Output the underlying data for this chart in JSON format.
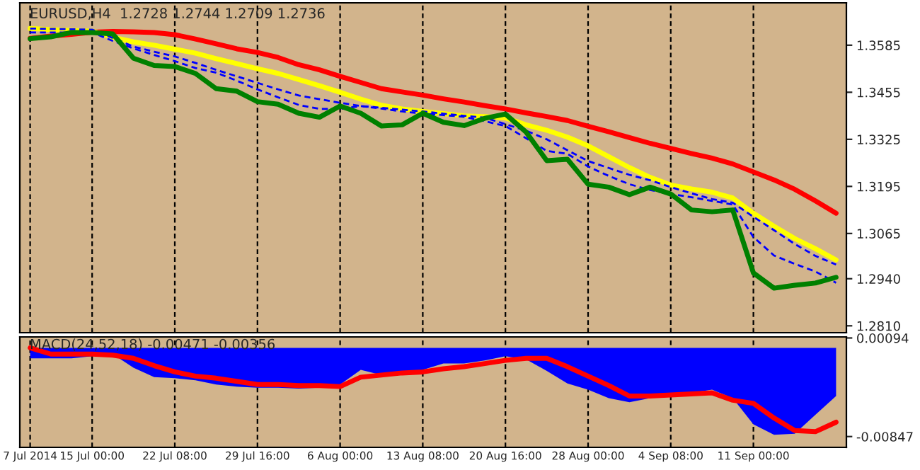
{
  "chart_data": [
    {
      "type": "line",
      "title": "EURUSD,H4  1.2728 1.2744 1.2709 1.2736",
      "categories": [
        null,
        null,
        null,
        null,
        null,
        null,
        null,
        null,
        null,
        null,
        null,
        null,
        null,
        null,
        null,
        null,
        null,
        null,
        null,
        null,
        null,
        null,
        null,
        null,
        null,
        null,
        null,
        null,
        null,
        null,
        null,
        null,
        null,
        null,
        null,
        null,
        null,
        null,
        null,
        null
      ],
      "ylim": [
        1.2791,
        1.3702
      ],
      "yticks": [
        {
          "value": 1.281,
          "label": "1.2810"
        },
        {
          "value": 1.294,
          "label": "1.2940"
        },
        {
          "value": 1.3065,
          "label": "1.3065"
        },
        {
          "value": 1.3195,
          "label": "1.3195"
        },
        {
          "value": 1.3325,
          "label": "1.3325"
        },
        {
          "value": 1.3455,
          "label": "1.3455"
        },
        {
          "value": 1.3585,
          "label": "1.3585"
        }
      ],
      "grid": "x",
      "series": [
        {
          "color": "#ff0000",
          "line_style": "solid",
          "values": [
            1.3604,
            1.361,
            1.3615,
            1.3621,
            1.3623,
            1.3622,
            1.362,
            1.3614,
            1.3602,
            1.3589,
            1.3575,
            1.3565,
            1.3551,
            1.3531,
            1.3517,
            1.3499,
            1.3482,
            1.3465,
            1.3456,
            1.3447,
            1.3437,
            1.3428,
            1.3418,
            1.3409,
            1.3398,
            1.3388,
            1.3377,
            1.3361,
            1.3346,
            1.333,
            1.3314,
            1.33,
            1.3286,
            1.3273,
            1.3257,
            1.3235,
            1.3213,
            1.3187,
            1.3155,
            1.3121
          ]
        },
        {
          "color": "#ffff00",
          "line_style": "solid",
          "values": [
            1.3631,
            1.3628,
            1.3626,
            1.3624,
            1.3607,
            1.3594,
            1.3585,
            1.3574,
            1.3563,
            1.3548,
            1.3534,
            1.352,
            1.3507,
            1.349,
            1.3473,
            1.3455,
            1.3436,
            1.3419,
            1.3409,
            1.3402,
            1.3396,
            1.339,
            1.3388,
            1.3384,
            1.3365,
            1.335,
            1.3331,
            1.3307,
            1.3277,
            1.3247,
            1.322,
            1.3199,
            1.3188,
            1.3179,
            1.3163,
            1.3121,
            1.3085,
            1.3051,
            1.3023,
            1.2992
          ]
        },
        {
          "color": "#0000ff",
          "line_style": "dashed",
          "values": [
            1.3631,
            1.363,
            1.3629,
            1.3628,
            1.3605,
            1.3581,
            1.3567,
            1.3554,
            1.3536,
            1.3517,
            1.3499,
            1.3481,
            1.3463,
            1.3446,
            1.3436,
            1.3426,
            1.3417,
            1.3412,
            1.3407,
            1.3402,
            1.3396,
            1.339,
            1.3385,
            1.3367,
            1.3349,
            1.3325,
            1.3295,
            1.3265,
            1.3246,
            1.3227,
            1.3212,
            1.3193,
            1.3176,
            1.316,
            1.315,
            1.3111,
            1.3074,
            1.3036,
            1.3003,
            1.2979
          ]
        },
        {
          "color": "#0000ff",
          "line_style": "dashed",
          "values": [
            1.362,
            1.362,
            1.362,
            1.362,
            1.3597,
            1.3576,
            1.3558,
            1.3541,
            1.3522,
            1.3509,
            1.3487,
            1.3463,
            1.3441,
            1.342,
            1.3409,
            1.3409,
            1.3417,
            1.341,
            1.3402,
            1.3396,
            1.3392,
            1.3387,
            1.3375,
            1.3362,
            1.3328,
            1.3293,
            1.3285,
            1.325,
            1.3224,
            1.3201,
            1.3185,
            1.3174,
            1.3165,
            1.3155,
            1.3145,
            1.3055,
            1.3004,
            1.2981,
            1.296,
            1.2929
          ]
        },
        {
          "color": "#008000",
          "line_style": "solid",
          "values": [
            1.3603,
            1.3608,
            1.362,
            1.362,
            1.3616,
            1.3549,
            1.3529,
            1.3526,
            1.3507,
            1.3465,
            1.3458,
            1.3429,
            1.3422,
            1.3397,
            1.3386,
            1.3417,
            1.3397,
            1.3362,
            1.3365,
            1.3397,
            1.3372,
            1.3363,
            1.3383,
            1.3395,
            1.3345,
            1.3266,
            1.327,
            1.3201,
            1.3193,
            1.3172,
            1.3193,
            1.3174,
            1.313,
            1.3125,
            1.313,
            1.2956,
            1.2914,
            1.2922,
            1.2928,
            1.2944
          ]
        }
      ]
    },
    {
      "type": "area",
      "title": "MACD(24,52,18) -0.00471 -0.00356",
      "categories": [
        "7 Jul 2014",
        null,
        null,
        "15 Jul 00:00",
        null,
        null,
        null,
        "22 Jul 08:00",
        null,
        null,
        null,
        "29 Jul 16:00",
        null,
        null,
        null,
        "6 Aug 00:00",
        null,
        null,
        null,
        "13 Aug 08:00",
        null,
        null,
        null,
        "20 Aug 16:00",
        null,
        null,
        null,
        "28 Aug 00:00",
        null,
        null,
        null,
        "4 Sep 08:00",
        null,
        null,
        null,
        "11 Sep 00:00",
        null,
        null,
        null,
        null
      ],
      "ylim": [
        -0.0095,
        0.00104
      ],
      "yticks": [
        {
          "value": 0.00094,
          "label": "0.00094"
        },
        {
          "value": -0.00847,
          "label": "-0.00847"
        }
      ],
      "grid": "x",
      "series": [
        {
          "type": "area",
          "color": "#0000ff",
          "values": [
            -0.001,
            -0.001,
            -0.001,
            -0.0008,
            -0.0006,
            -0.0019,
            -0.0028,
            -0.0029,
            -0.0031,
            -0.0035,
            -0.0037,
            -0.0038,
            -0.0038,
            -0.0039,
            -0.0038,
            -0.0035,
            -0.0021,
            -0.0026,
            -0.0025,
            -0.0021,
            -0.0015,
            -0.0015,
            -0.0012,
            -0.0008,
            -0.0011,
            -0.0022,
            -0.0034,
            -0.004,
            -0.0048,
            -0.0052,
            -0.0048,
            -0.0044,
            -0.0043,
            -0.004,
            -0.0048,
            -0.0073,
            -0.0083,
            -0.0082,
            -0.0064,
            -0.0046
          ]
        },
        {
          "type": "line",
          "color": "#ff0000",
          "line_style": "solid",
          "values": [
            0.0,
            -0.0006,
            -0.0006,
            -0.0006,
            -0.0007,
            -0.001,
            -0.0017,
            -0.0023,
            -0.0027,
            -0.0029,
            -0.0032,
            -0.0035,
            -0.0035,
            -0.0036,
            -0.0036,
            -0.0037,
            -0.0028,
            -0.0026,
            -0.0024,
            -0.0023,
            -0.002,
            -0.0018,
            -0.0015,
            -0.0012,
            -0.001,
            -0.001,
            -0.0018,
            -0.0027,
            -0.0036,
            -0.0046,
            -0.0046,
            -0.0045,
            -0.0044,
            -0.0043,
            -0.005,
            -0.0053,
            -0.0067,
            -0.0079,
            -0.008,
            -0.0071
          ]
        }
      ]
    }
  ]
}
